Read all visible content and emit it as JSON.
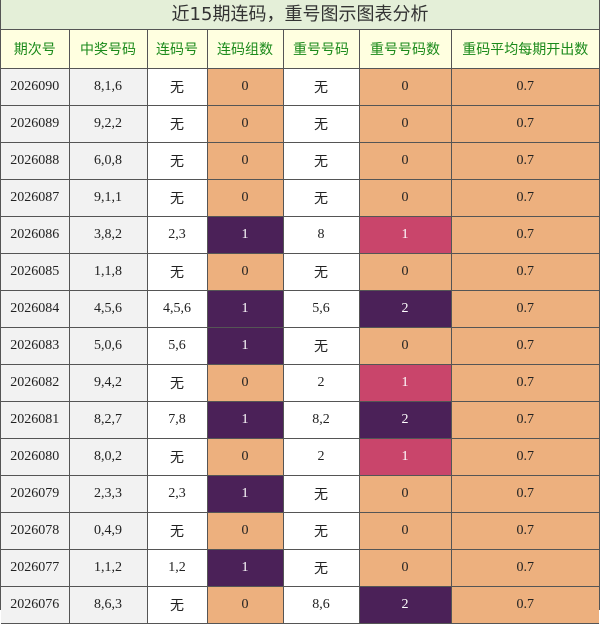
{
  "title": "近15期连码，重号图示图表分析",
  "headers": [
    "期次号",
    "中奖号码",
    "连码号",
    "连码组数",
    "重号号码",
    "重号号码数",
    "重码平均每期开出数"
  ],
  "rows": [
    {
      "issue": "2026090",
      "draw": "8,1,6",
      "consec": "无",
      "consec_groups": "0",
      "repeat": "无",
      "repeat_count": "0",
      "avg": "0.7"
    },
    {
      "issue": "2026089",
      "draw": "9,2,2",
      "consec": "无",
      "consec_groups": "0",
      "repeat": "无",
      "repeat_count": "0",
      "avg": "0.7"
    },
    {
      "issue": "2026088",
      "draw": "6,0,8",
      "consec": "无",
      "consec_groups": "0",
      "repeat": "无",
      "repeat_count": "0",
      "avg": "0.7"
    },
    {
      "issue": "2026087",
      "draw": "9,1,1",
      "consec": "无",
      "consec_groups": "0",
      "repeat": "无",
      "repeat_count": "0",
      "avg": "0.7"
    },
    {
      "issue": "2026086",
      "draw": "3,8,2",
      "consec": "2,3",
      "consec_groups": "1",
      "repeat": "8",
      "repeat_count": "1",
      "avg": "0.7"
    },
    {
      "issue": "2026085",
      "draw": "1,1,8",
      "consec": "无",
      "consec_groups": "0",
      "repeat": "无",
      "repeat_count": "0",
      "avg": "0.7"
    },
    {
      "issue": "2026084",
      "draw": "4,5,6",
      "consec": "4,5,6",
      "consec_groups": "1",
      "repeat": "5,6",
      "repeat_count": "2",
      "avg": "0.7"
    },
    {
      "issue": "2026083",
      "draw": "5,0,6",
      "consec": "5,6",
      "consec_groups": "1",
      "repeat": "无",
      "repeat_count": "0",
      "avg": "0.7"
    },
    {
      "issue": "2026082",
      "draw": "9,4,2",
      "consec": "无",
      "consec_groups": "0",
      "repeat": "2",
      "repeat_count": "1",
      "avg": "0.7"
    },
    {
      "issue": "2026081",
      "draw": "8,2,7",
      "consec": "7,8",
      "consec_groups": "1",
      "repeat": "8,2",
      "repeat_count": "2",
      "avg": "0.7"
    },
    {
      "issue": "2026080",
      "draw": "8,0,2",
      "consec": "无",
      "consec_groups": "0",
      "repeat": "2",
      "repeat_count": "1",
      "avg": "0.7"
    },
    {
      "issue": "2026079",
      "draw": "2,3,3",
      "consec": "2,3",
      "consec_groups": "1",
      "repeat": "无",
      "repeat_count": "0",
      "avg": "0.7"
    },
    {
      "issue": "2026078",
      "draw": "0,4,9",
      "consec": "无",
      "consec_groups": "0",
      "repeat": "无",
      "repeat_count": "0",
      "avg": "0.7"
    },
    {
      "issue": "2026077",
      "draw": "1,1,2",
      "consec": "1,2",
      "consec_groups": "1",
      "repeat": "无",
      "repeat_count": "0",
      "avg": "0.7"
    },
    {
      "issue": "2026076",
      "draw": "8,6,3",
      "consec": "无",
      "consec_groups": "0",
      "repeat": "8,6",
      "repeat_count": "2",
      "avg": "0.7"
    }
  ],
  "colors": {
    "title_bg": "#e4efd8",
    "header_bg": "#ffffe0",
    "header_text": "#1a8a1a",
    "zero_cell": "#edb07e",
    "consec_one": "#4b2158",
    "repeat_one": "#c9456b",
    "repeat_two": "#4b2158"
  }
}
